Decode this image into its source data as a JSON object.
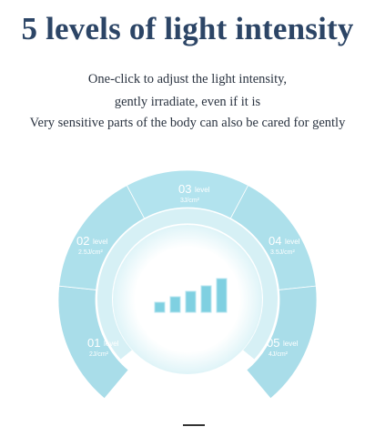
{
  "header": {
    "title": "5 levels of light intensity",
    "lines": [
      "One-click to adjust the light intensity,",
      "gently irradiate, even if it is",
      "Very sensitive parts of the body can also be cared for gently"
    ]
  },
  "dial": {
    "levels": [
      {
        "number": "01",
        "unit": "level",
        "value": "2J/cm²"
      },
      {
        "number": "02",
        "unit": "level",
        "value": "2.5J/cm²"
      },
      {
        "number": "03",
        "unit": "level",
        "value": "3J/cm²"
      },
      {
        "number": "04",
        "unit": "level",
        "value": "3.5J/cm²"
      },
      {
        "number": "05",
        "unit": "level",
        "value": "4J/cm²"
      }
    ],
    "icon": "signal-bars-icon",
    "colors": {
      "outer": "#a5dde8",
      "mid": "#d3eff4",
      "bars": "#7fd0e1",
      "divider": "#ffffff"
    }
  }
}
